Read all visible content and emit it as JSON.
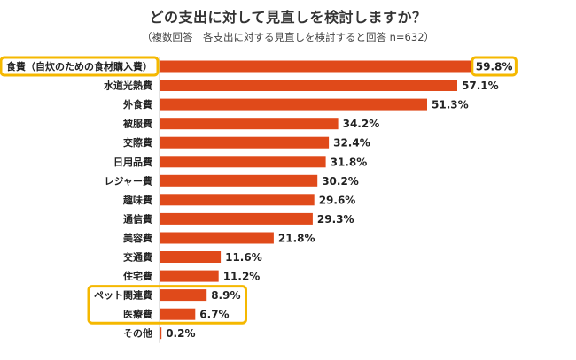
{
  "title": "どの支出に対して見直しを検討しますか？",
  "subtitle": "（複数回答　各支出に対する見直しを検討すると回答 n=632）",
  "colors": {
    "bar": "#e04a1a",
    "highlight": "#f5b800",
    "axis": "#c8c8c8"
  },
  "chart_data": {
    "type": "bar",
    "orientation": "horizontal",
    "categories": [
      "食費（自炊のための食材購入費）",
      "水道光熱費",
      "外食費",
      "被服費",
      "交際費",
      "日用品費",
      "レジャー費",
      "趣味費",
      "通信費",
      "美容費",
      "交通費",
      "住宅費",
      "ペット関連費",
      "医療費",
      "その他"
    ],
    "values": [
      59.8,
      57.1,
      51.3,
      34.2,
      32.4,
      31.8,
      30.2,
      29.6,
      29.3,
      21.8,
      11.6,
      11.2,
      8.9,
      6.7,
      0.2
    ],
    "value_labels": [
      "59.8%",
      "57.1%",
      "51.3%",
      "34.2%",
      "32.4%",
      "31.8%",
      "30.2%",
      "29.6%",
      "29.3%",
      "21.8%",
      "11.6%",
      "11.2%",
      "8.9%",
      "6.7%",
      "0.2%"
    ],
    "xlim": [
      0,
      60
    ],
    "grid": false,
    "highlighted_categories": [
      "食費（自炊のための食材購入費）",
      "ペット関連費",
      "医療費"
    ],
    "highlighted_values": [
      "59.8%"
    ]
  }
}
